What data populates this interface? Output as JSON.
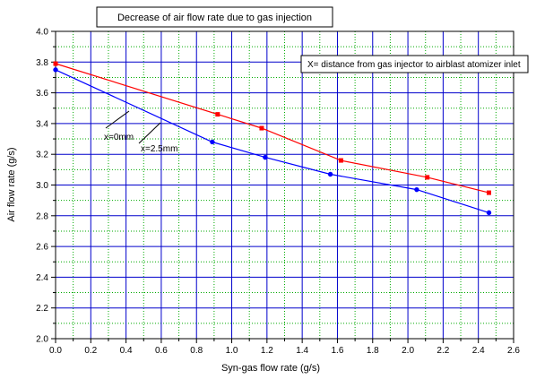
{
  "chart_data": {
    "type": "line",
    "title": "Decrease of air flow rate due to gas injection",
    "xlabel": "Syn-gas flow rate (g/s)",
    "ylabel": "Air flow rate (g/s)",
    "xlim": [
      0.0,
      2.6
    ],
    "ylim": [
      2.0,
      4.0
    ],
    "xticks": [
      0.0,
      0.2,
      0.4,
      0.6,
      0.8,
      1.0,
      1.2,
      1.4,
      1.6,
      1.8,
      2.0,
      2.2,
      2.4,
      2.6
    ],
    "xtick_labels": [
      "0.0",
      "0.2",
      "0.4",
      "0.6",
      "0.8",
      "1.0",
      "1.2",
      "1.4",
      "1.6",
      "1.8",
      "2.0",
      "2.2",
      "2.4",
      "2.6"
    ],
    "yticks": [
      2.0,
      2.2,
      2.4,
      2.6,
      2.8,
      3.0,
      3.2,
      3.4,
      3.6,
      3.8,
      4.0
    ],
    "ytick_labels": [
      "2.0",
      "2.2",
      "2.4",
      "2.6",
      "2.8",
      "3.0",
      "3.2",
      "3.4",
      "3.6",
      "3.8",
      "4.0"
    ],
    "grid": true,
    "grid_style": "dotted green minor, blue major",
    "note": "X= distance from gas injector to airblast atomizer inlet",
    "series": [
      {
        "name": "x=0mm",
        "color": "#ff0000",
        "marker": "square",
        "x": [
          0.0,
          0.92,
          1.17,
          1.62,
          2.11,
          2.46
        ],
        "y": [
          3.79,
          3.46,
          3.37,
          3.16,
          3.05,
          2.95
        ]
      },
      {
        "name": "x=2.5mm",
        "color": "#0000ff",
        "marker": "circle",
        "x": [
          0.0,
          0.89,
          1.19,
          1.56,
          2.05,
          2.46
        ],
        "y": [
          3.75,
          3.28,
          3.18,
          3.07,
          2.97,
          2.82
        ]
      }
    ],
    "annotations": [
      {
        "text": "x=0mm",
        "series": "x=0mm"
      },
      {
        "text": "x=2.5mm",
        "series": "x=2.5mm"
      }
    ]
  },
  "colors": {
    "major_grid": "#0000cc",
    "minor_grid": "#00aa00",
    "axis": "#000000"
  }
}
